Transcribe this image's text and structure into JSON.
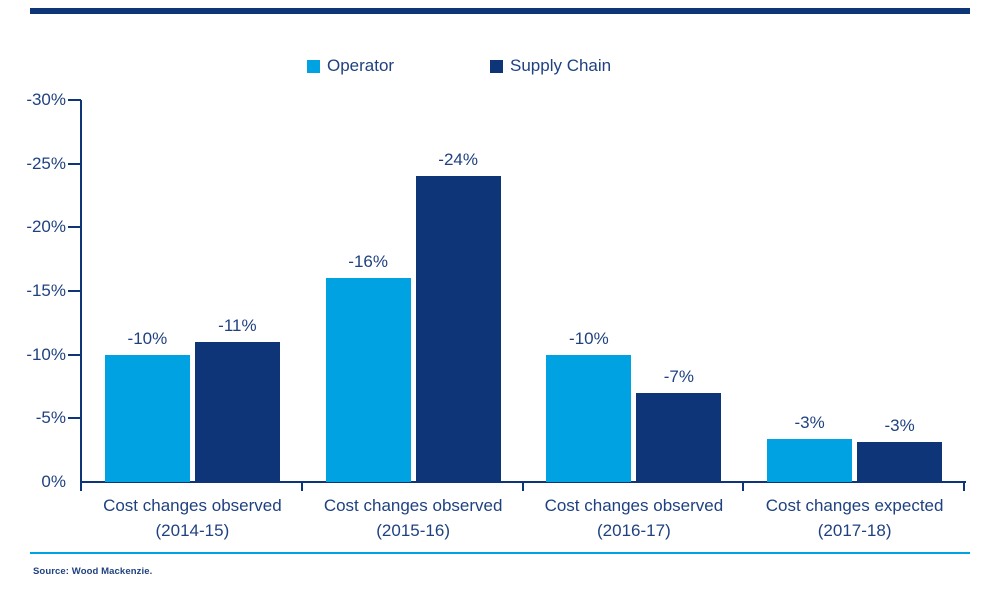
{
  "colors": {
    "operator": "#00A2E2",
    "supply_chain": "#0D3578",
    "text": "#1F4180",
    "axis": "#0D3578",
    "top_rule": "#0D3578",
    "bottom_rule": "#00A2E2"
  },
  "legend": {
    "items": [
      {
        "label": "Operator",
        "color": "#00A2E2"
      },
      {
        "label": "Supply Chain",
        "color": "#0D3578"
      }
    ]
  },
  "footer": {
    "source": "Source: Wood Mackenzie."
  },
  "chart_data": {
    "type": "bar",
    "legend_position": "top",
    "grid": false,
    "categories": [
      [
        "Cost changes observed",
        "(2014-15)"
      ],
      [
        "Cost changes observed",
        "(2015-16)"
      ],
      [
        "Cost changes observed",
        "(2016-17)"
      ],
      [
        "Cost changes expected",
        "(2017-18)"
      ]
    ],
    "series": [
      {
        "name": "Operator",
        "color": "#00A2E2",
        "values": [
          -10,
          -16,
          -10,
          -3
        ],
        "labels": [
          "-10%",
          "-16%",
          "-10%",
          "-3%"
        ],
        "precise_values": [
          -10,
          -16,
          -10,
          -3.4
        ]
      },
      {
        "name": "Supply Chain",
        "color": "#0D3578",
        "values": [
          -11,
          -24,
          -7,
          -3
        ],
        "labels": [
          "-11%",
          "-24%",
          "-7%",
          "-3%"
        ],
        "precise_values": [
          -11,
          -24,
          -7,
          -3.15
        ]
      }
    ],
    "y_axis": {
      "min": -30,
      "max": 0,
      "inverted_direction": "negative values increase upward",
      "ticks": [
        {
          "label": "-30%",
          "value": -30
        },
        {
          "label": "-25%",
          "value": -25
        },
        {
          "label": "-20%",
          "value": -20
        },
        {
          "label": "-15%",
          "value": -15
        },
        {
          "label": "-10%",
          "value": -10
        },
        {
          "label": "-5%",
          "value": -5
        },
        {
          "label": "0%",
          "value": 0
        }
      ]
    }
  }
}
